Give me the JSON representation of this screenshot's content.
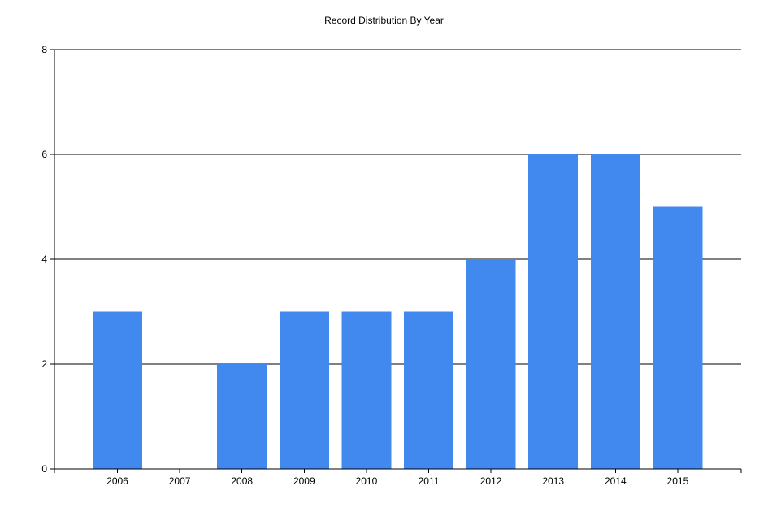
{
  "chart_data": {
    "type": "bar",
    "title": "Record Distribution By Year",
    "xlabel": "",
    "ylabel": "",
    "categories": [
      "2006",
      "2007",
      "2008",
      "2009",
      "2010",
      "2011",
      "2012",
      "2013",
      "2014",
      "2015"
    ],
    "values": [
      3,
      0,
      2,
      3,
      3,
      3,
      4,
      6,
      6,
      5
    ],
    "ylim": [
      0,
      8
    ],
    "yticks": [
      0,
      2,
      4,
      6,
      8
    ],
    "grid": true,
    "bar_color": "#4189ee",
    "grid_color": "#000000"
  }
}
